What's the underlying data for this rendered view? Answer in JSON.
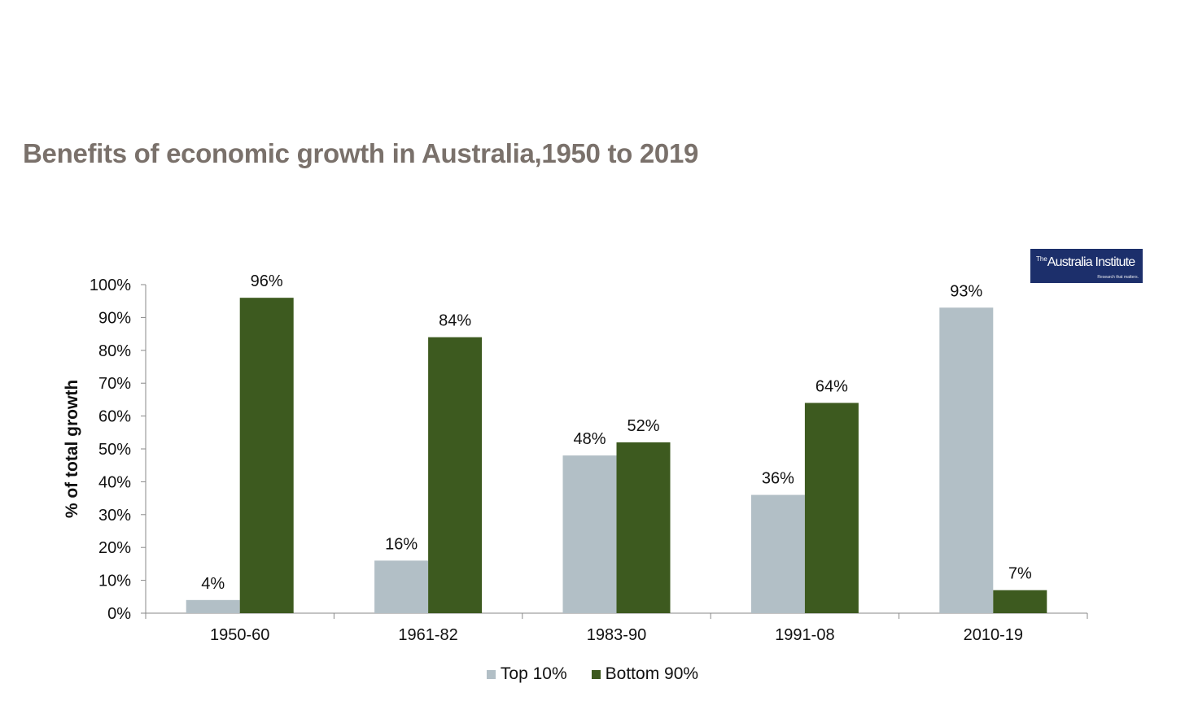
{
  "title": "Benefits of economic growth in Australia,1950 to 2019",
  "logo": {
    "the": "The",
    "name": "Australia Institute",
    "tagline": "Research that matters."
  },
  "colors": {
    "top10": "#b2bfc6",
    "bottom90": "#3d5a1f",
    "title": "#7a716b",
    "logo_bg": "#1c2f6b"
  },
  "chart_data": {
    "type": "bar",
    "title": "Benefits of economic growth in Australia,1950 to 2019",
    "xlabel": "",
    "ylabel": "% of total growth",
    "ylim": [
      0,
      100
    ],
    "yticks": [
      "0%",
      "10%",
      "20%",
      "30%",
      "40%",
      "50%",
      "60%",
      "70%",
      "80%",
      "90%",
      "100%"
    ],
    "categories": [
      "1950-60",
      "1961-82",
      "1983-90",
      "1991-08",
      "2010-19"
    ],
    "series": [
      {
        "name": "Top 10%",
        "values": [
          4,
          16,
          48,
          36,
          93
        ],
        "labels": [
          "4%",
          "16%",
          "48%",
          "36%",
          "93%"
        ]
      },
      {
        "name": "Bottom 90%",
        "values": [
          96,
          84,
          52,
          64,
          7
        ],
        "labels": [
          "96%",
          "84%",
          "52%",
          "64%",
          "7%"
        ]
      }
    ],
    "legend": "bottom",
    "grid": false
  }
}
